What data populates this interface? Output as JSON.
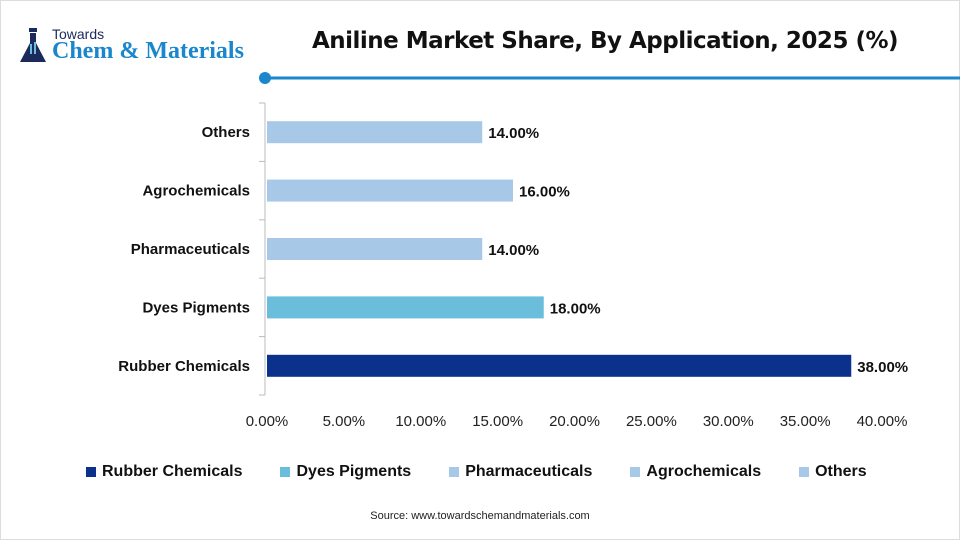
{
  "logo": {
    "line1": "Towards",
    "line2": "Chem & Materials"
  },
  "chart_data": {
    "type": "bar",
    "orientation": "horizontal",
    "title": "Aniline Market Share, By Application, 2025 (%)",
    "categories": [
      "Rubber Chemicals",
      "Dyes Pigments",
      "Pharmaceuticals",
      "Agrochemicals",
      "Others"
    ],
    "values": [
      38,
      18,
      14,
      16,
      14
    ],
    "data_labels": [
      "38.00%",
      "18.00%",
      "14.00%",
      "16.00%",
      "14.00%"
    ],
    "colors": [
      "#0b318c",
      "#6bbedb",
      "#a8c8e8",
      "#a8c8e8",
      "#a8c8e8"
    ],
    "xlim": [
      0,
      40
    ],
    "x_ticks": [
      "0.00%",
      "5.00%",
      "10.00%",
      "15.00%",
      "20.00%",
      "25.00%",
      "30.00%",
      "35.00%",
      "40.00%"
    ],
    "grid": false,
    "legend": "bottom"
  },
  "source": "Source: www.towardschemandmaterials.com",
  "accent": "#1a86cc"
}
